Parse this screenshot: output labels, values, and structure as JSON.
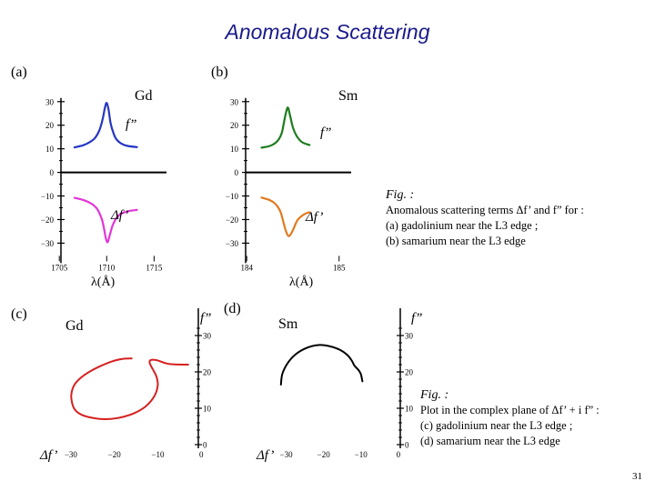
{
  "title": "Anomalous Scattering",
  "page_number": "31",
  "caption_top": {
    "head": "Fig. :",
    "line1": "Anomalous scattering terms Δf’ and f” for :",
    "line2": "(a) gadolinium near the L3 edge ;",
    "line3": "(b) samarium near the L3 edge"
  },
  "caption_bottom": {
    "head": "Fig. :",
    "line1": "Plot in the complex plane of Δf’ + i f” :",
    "line2": "(c)  gadolinium near the L3 edge ;",
    "line3": "(d)  samarium near the L3 edge"
  },
  "colors": {
    "blue": "#2636c4",
    "magenta": "#e236d6",
    "green": "#1e7d1e",
    "orange": "#e07a1e",
    "red": "#d62020",
    "black": "#000000",
    "title": "#1a1a8c"
  },
  "chart_data": [
    {
      "id": "a",
      "type": "line",
      "panel_label": "(a)",
      "element": "Gd",
      "xlabel": "λ(Å)",
      "xlim": [
        1704.5,
        1716.5
      ],
      "ylim": [
        -31,
        33
      ],
      "yticks": [
        30,
        20,
        10,
        0,
        -10,
        -20,
        -30
      ],
      "yticklabels": [
        "30",
        "20",
        "10",
        "0",
        "−10",
        "−20",
        "−30"
      ],
      "xticks": [
        1705,
        1710,
        1715
      ],
      "xticklabels": [
        "1705",
        "1710",
        "1715"
      ],
      "series": [
        {
          "name": "f”",
          "label": "f”",
          "color": "#2636c4",
          "x": [
            1706.6,
            1707.5,
            1708.2,
            1708.7,
            1709.0,
            1709.3,
            1709.6,
            1709.8,
            1710.0,
            1710.2,
            1710.4,
            1710.7,
            1711.0,
            1711.5,
            1712.2,
            1713.2
          ],
          "y": [
            10.6,
            11.5,
            12.8,
            14.3,
            16.0,
            18.6,
            23.0,
            27.2,
            29.5,
            26.5,
            21.0,
            16.8,
            14.2,
            12.3,
            11.2,
            10.7
          ]
        },
        {
          "name": "Δf’",
          "label": "Δf’",
          "color": "#e236d6",
          "x": [
            1706.6,
            1707.6,
            1708.4,
            1708.9,
            1709.2,
            1709.5,
            1709.7,
            1709.9,
            1710.1,
            1710.3,
            1710.6,
            1711.0,
            1711.5,
            1712.2,
            1713.2
          ],
          "y": [
            -10.8,
            -11.8,
            -13.3,
            -15.0,
            -17.0,
            -20.0,
            -23.5,
            -27.8,
            -29.6,
            -27.0,
            -22.8,
            -19.5,
            -17.6,
            -16.5,
            -15.9
          ]
        }
      ],
      "annotations": [
        {
          "text": "Gd"
        },
        {
          "text": "f”"
        },
        {
          "text": "Δf’"
        }
      ]
    },
    {
      "id": "b",
      "type": "line",
      "panel_label": "(b)",
      "element": "Sm",
      "xlabel": "λ(Å)",
      "xlim": [
        1838.7,
        1851.5
      ],
      "ylim": [
        -31,
        33
      ],
      "yticks": [
        30,
        20,
        10,
        0,
        -10,
        -20,
        -30
      ],
      "yticklabels": [
        "30",
        "20",
        "10",
        "0",
        "−10",
        "−20",
        "−30"
      ],
      "xticks": [
        1840,
        1850
      ],
      "xticklabels": [
        "184",
        "185"
      ],
      "series": [
        {
          "name": "f”",
          "label": "f”",
          "color": "#1e7d1e",
          "x": [
            1841.6,
            1842.5,
            1843.1,
            1843.5,
            1843.8,
            1844.0,
            1844.2,
            1844.45,
            1844.7,
            1845.0,
            1845.4,
            1846.0,
            1846.8
          ],
          "y": [
            10.5,
            11.2,
            12.5,
            14.2,
            16.8,
            20.5,
            24.5,
            27.5,
            24.0,
            19.0,
            15.5,
            12.8,
            11.6
          ]
        },
        {
          "name": "Δf’",
          "label": "Δf’",
          "color": "#e07a1e",
          "x": [
            1841.6,
            1842.4,
            1843.0,
            1843.4,
            1843.7,
            1844.0,
            1844.3,
            1844.6,
            1845.0,
            1845.5,
            1846.2,
            1846.8
          ],
          "y": [
            -10.7,
            -11.6,
            -13.0,
            -14.8,
            -17.2,
            -21.5,
            -25.5,
            -27.0,
            -24.5,
            -20.2,
            -17.8,
            -16.9
          ]
        }
      ],
      "annotations": [
        {
          "text": "Sm"
        },
        {
          "text": "f”"
        },
        {
          "text": "Δf’"
        }
      ]
    },
    {
      "id": "c",
      "type": "line",
      "panel_label": "(c)",
      "element": "Gd",
      "xlabel": "Δf’",
      "ylabel": "f”",
      "xlim": [
        -35,
        1
      ],
      "ylim": [
        -1,
        33
      ],
      "xticks": [
        -30,
        -20,
        -10,
        0
      ],
      "xticklabels": [
        "−30",
        "−20",
        "−10",
        "0"
      ],
      "yticks": [
        30,
        20,
        10,
        0
      ],
      "yticklabels": [
        "30",
        "20",
        "10",
        "0"
      ],
      "series": [
        {
          "name": "Δf’ + i f”",
          "color": "#d62020",
          "x": [
            -16.0,
            -18.0,
            -20.5,
            -23.0,
            -25.5,
            -27.6,
            -29.2,
            -29.9,
            -29.7,
            -29.0,
            -27.5,
            -25.2,
            -22.2,
            -18.8,
            -15.5,
            -12.8,
            -10.8,
            -10.0,
            -10.3,
            -11.0,
            -11.6,
            -11.9,
            -11.5,
            -10.2,
            -7.5,
            -3.0
          ],
          "y": [
            23.7,
            23.6,
            22.9,
            21.7,
            20.2,
            18.5,
            16.4,
            13.8,
            11.4,
            9.5,
            8.2,
            7.4,
            7.0,
            7.4,
            8.6,
            10.5,
            13.3,
            16.3,
            18.7,
            20.4,
            21.7,
            22.7,
            23.3,
            23.2,
            22.2,
            22.0
          ]
        }
      ],
      "annotations": [
        {
          "text": "Gd"
        }
      ]
    },
    {
      "id": "d",
      "type": "line",
      "panel_label": "(d)",
      "element": "Sm",
      "xlabel": "Δf’",
      "ylabel": "f”",
      "xlim": [
        -35,
        1
      ],
      "ylim": [
        -1,
        33
      ],
      "xticks": [
        -30,
        -20,
        -10,
        0
      ],
      "xticklabels": [
        "−30",
        "−20",
        "−10",
        "0"
      ],
      "yticks": [
        30,
        20,
        10,
        0
      ],
      "yticklabels": [
        "30",
        "20",
        "10",
        "0"
      ],
      "series": [
        {
          "name": "Δf’ + i f”",
          "color": "#000000",
          "x": [
            -31.4,
            -31.0,
            -29.4,
            -27.0,
            -24.0,
            -21.0,
            -18.2,
            -15.5,
            -13.5,
            -12.4,
            -11.8,
            -11.0,
            -10.5,
            -10.0,
            -9.6
          ],
          "y": [
            16.5,
            19.5,
            22.7,
            25.2,
            26.8,
            27.4,
            27.0,
            26.0,
            24.5,
            23.0,
            21.8,
            20.9,
            20.3,
            19.3,
            17.4
          ]
        }
      ],
      "annotations": [
        {
          "text": "Sm"
        }
      ]
    }
  ]
}
